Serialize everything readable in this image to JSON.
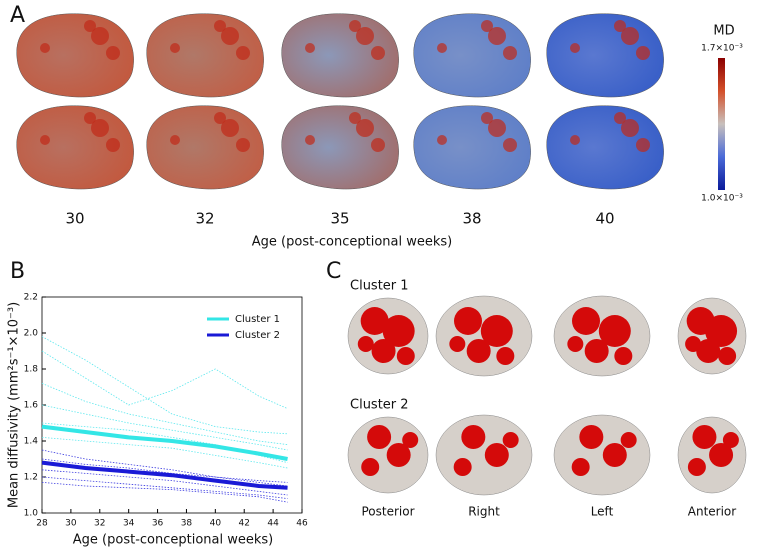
{
  "panel_a": {
    "letter": "A",
    "colorbar_title": "MD",
    "colorbar_max": "1.7×10⁻³",
    "colorbar_min": "1.0×10⁻³",
    "ages": [
      30,
      32,
      35,
      38,
      40
    ],
    "axis_label": "Age (post-conceptional weeks)"
  },
  "panel_b": {
    "letter": "B"
  },
  "panel_c": {
    "letter": "C",
    "rows": [
      "Cluster 1",
      "Cluster 2"
    ],
    "views": [
      "Posterior",
      "Right",
      "Left",
      "Anterior"
    ]
  },
  "chart_data": {
    "type": "line",
    "x_label": "Age (post-conceptional weeks)",
    "y_label": "Mean diffusivity (mm²s⁻¹×10⁻³)",
    "x": [
      28,
      31,
      34,
      37,
      40,
      43,
      45
    ],
    "xlim": [
      28,
      46
    ],
    "xticks": [
      28,
      30,
      32,
      34,
      36,
      38,
      40,
      42,
      44,
      46
    ],
    "ylim": [
      1,
      2.2
    ],
    "yticks": [
      {
        "value": 1,
        "label": "1.0"
      },
      1.2,
      1.4,
      1.6,
      1.8,
      {
        "value": 2,
        "label": "2.0"
      },
      2.2
    ],
    "legend": "upper right",
    "series": [
      {
        "name": "Cluster 1",
        "color": "#33e6e6",
        "values": [
          1.48,
          1.45,
          1.42,
          1.4,
          1.37,
          1.33,
          1.3
        ]
      },
      {
        "name": "Cluster 2",
        "color": "#1a1ad6",
        "values": [
          1.28,
          1.25,
          1.23,
          1.21,
          1.18,
          1.15,
          1.14
        ]
      }
    ],
    "individual_curves": [
      {
        "color": "#5ce8ee",
        "values": [
          1.98,
          1.85,
          1.7,
          1.55,
          1.48,
          1.45,
          1.44
        ]
      },
      {
        "color": "#5ce8ee",
        "values": [
          1.9,
          1.75,
          1.6,
          1.68,
          1.8,
          1.65,
          1.58
        ]
      },
      {
        "color": "#5ce8ee",
        "values": [
          1.72,
          1.62,
          1.55,
          1.5,
          1.45,
          1.4,
          1.38
        ]
      },
      {
        "color": "#5ce8ee",
        "values": [
          1.6,
          1.55,
          1.5,
          1.46,
          1.42,
          1.38,
          1.35
        ]
      },
      {
        "color": "#5ce8ee",
        "values": [
          1.5,
          1.48,
          1.46,
          1.42,
          1.38,
          1.32,
          1.28
        ]
      },
      {
        "color": "#5ce8ee",
        "values": [
          1.42,
          1.4,
          1.38,
          1.36,
          1.32,
          1.28,
          1.25
        ]
      },
      {
        "color": "#3c3ce0",
        "values": [
          1.35,
          1.3,
          1.27,
          1.24,
          1.2,
          1.17,
          1.15
        ]
      },
      {
        "color": "#3c3ce0",
        "values": [
          1.3,
          1.27,
          1.25,
          1.22,
          1.2,
          1.18,
          1.17
        ]
      },
      {
        "color": "#3c3ce0",
        "values": [
          1.24,
          1.22,
          1.2,
          1.18,
          1.15,
          1.12,
          1.1
        ]
      },
      {
        "color": "#3c3ce0",
        "values": [
          1.2,
          1.18,
          1.16,
          1.14,
          1.12,
          1.1,
          1.08
        ]
      },
      {
        "color": "#3c3ce0",
        "values": [
          1.17,
          1.15,
          1.14,
          1.13,
          1.11,
          1.09,
          1.06
        ]
      }
    ]
  }
}
